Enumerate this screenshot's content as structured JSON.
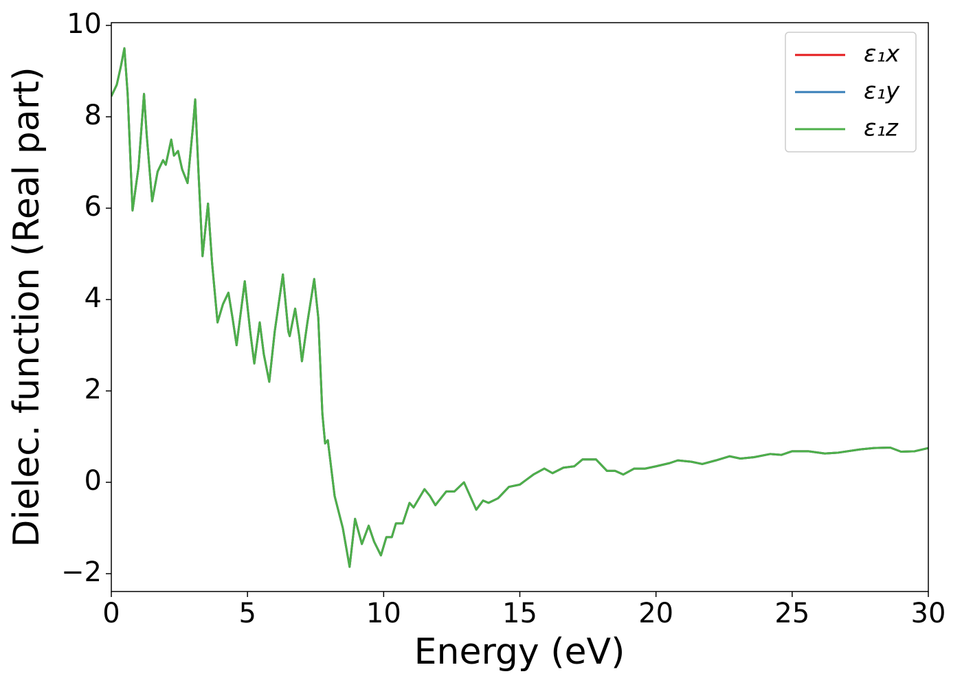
{
  "chart_data": {
    "type": "line",
    "xlabel": "Energy (eV)",
    "ylabel": "Dielec. function (Real part)",
    "x": [
      0,
      0.2,
      0.35,
      0.48,
      0.6,
      0.78,
      1.0,
      1.2,
      1.3,
      1.5,
      1.7,
      1.9,
      2.0,
      2.2,
      2.3,
      2.45,
      2.6,
      2.8,
      3.0,
      3.08,
      3.2,
      3.35,
      3.55,
      3.7,
      3.9,
      4.1,
      4.3,
      4.45,
      4.6,
      4.9,
      5.1,
      5.25,
      5.45,
      5.6,
      5.8,
      6.0,
      6.3,
      6.5,
      6.55,
      6.75,
      6.9,
      7.0,
      7.2,
      7.45,
      7.6,
      7.75,
      7.85,
      7.95,
      8.2,
      8.5,
      8.75,
      8.95,
      9.2,
      9.45,
      9.65,
      9.9,
      10.1,
      10.3,
      10.45,
      10.7,
      10.95,
      11.1,
      11.5,
      11.7,
      11.9,
      12.3,
      12.6,
      12.95,
      13.4,
      13.65,
      13.85,
      14.2,
      14.6,
      15.0,
      15.5,
      15.9,
      16.2,
      16.6,
      17.0,
      17.3,
      17.8,
      18.2,
      18.5,
      18.8,
      19.2,
      19.6,
      20.0,
      20.5,
      20.8,
      21.3,
      21.7,
      22.2,
      22.7,
      23.1,
      23.6,
      24.2,
      24.6,
      25.0,
      25.6,
      26.2,
      26.7,
      27.5,
      28.0,
      28.6,
      29.0,
      29.5,
      30.0
    ],
    "series": [
      {
        "name": "ε₁x",
        "color": "#e41a1c",
        "values": [
          8.45,
          8.7,
          9.1,
          9.5,
          8.5,
          5.95,
          6.9,
          8.5,
          7.6,
          6.15,
          6.8,
          7.05,
          6.95,
          7.5,
          7.15,
          7.25,
          6.85,
          6.55,
          7.8,
          8.38,
          6.8,
          4.95,
          6.1,
          4.8,
          3.5,
          3.9,
          4.15,
          3.6,
          3.0,
          4.4,
          3.3,
          2.6,
          3.5,
          2.8,
          2.2,
          3.3,
          4.55,
          3.3,
          3.2,
          3.8,
          3.2,
          2.65,
          3.5,
          4.45,
          3.6,
          1.5,
          0.85,
          0.92,
          -0.3,
          -1.0,
          -1.85,
          -0.8,
          -1.35,
          -0.95,
          -1.3,
          -1.6,
          -1.2,
          -1.2,
          -0.9,
          -0.9,
          -0.45,
          -0.55,
          -0.15,
          -0.3,
          -0.5,
          -0.2,
          -0.2,
          0.0,
          -0.6,
          -0.4,
          -0.45,
          -0.35,
          -0.1,
          -0.05,
          0.17,
          0.3,
          0.2,
          0.32,
          0.35,
          0.5,
          0.5,
          0.25,
          0.25,
          0.17,
          0.3,
          0.3,
          0.35,
          0.42,
          0.48,
          0.45,
          0.4,
          0.48,
          0.57,
          0.52,
          0.55,
          0.62,
          0.6,
          0.68,
          0.68,
          0.63,
          0.65,
          0.72,
          0.75,
          0.76,
          0.67,
          0.68,
          0.75
        ]
      },
      {
        "name": "ε₁y",
        "color": "#377eb8",
        "values": [
          8.45,
          8.7,
          9.1,
          9.5,
          8.5,
          5.95,
          6.9,
          8.5,
          7.6,
          6.15,
          6.8,
          7.05,
          6.95,
          7.5,
          7.15,
          7.25,
          6.85,
          6.55,
          7.8,
          8.38,
          6.8,
          4.95,
          6.1,
          4.8,
          3.5,
          3.9,
          4.15,
          3.6,
          3.0,
          4.4,
          3.3,
          2.6,
          3.5,
          2.8,
          2.2,
          3.3,
          4.55,
          3.3,
          3.2,
          3.8,
          3.2,
          2.65,
          3.5,
          4.45,
          3.6,
          1.5,
          0.85,
          0.92,
          -0.3,
          -1.0,
          -1.85,
          -0.8,
          -1.35,
          -0.95,
          -1.3,
          -1.6,
          -1.2,
          -1.2,
          -0.9,
          -0.9,
          -0.45,
          -0.55,
          -0.15,
          -0.3,
          -0.5,
          -0.2,
          -0.2,
          0.0,
          -0.6,
          -0.4,
          -0.45,
          -0.35,
          -0.1,
          -0.05,
          0.17,
          0.3,
          0.2,
          0.32,
          0.35,
          0.5,
          0.5,
          0.25,
          0.25,
          0.17,
          0.3,
          0.3,
          0.35,
          0.42,
          0.48,
          0.45,
          0.4,
          0.48,
          0.57,
          0.52,
          0.55,
          0.62,
          0.6,
          0.68,
          0.68,
          0.63,
          0.65,
          0.72,
          0.75,
          0.76,
          0.67,
          0.68,
          0.75
        ]
      },
      {
        "name": "ε₁z",
        "color": "#4daf4a",
        "values": [
          8.45,
          8.7,
          9.1,
          9.5,
          8.5,
          5.95,
          6.9,
          8.5,
          7.6,
          6.15,
          6.8,
          7.05,
          6.95,
          7.5,
          7.15,
          7.25,
          6.85,
          6.55,
          7.8,
          8.38,
          6.8,
          4.95,
          6.1,
          4.8,
          3.5,
          3.9,
          4.15,
          3.6,
          3.0,
          4.4,
          3.3,
          2.6,
          3.5,
          2.8,
          2.2,
          3.3,
          4.55,
          3.3,
          3.2,
          3.8,
          3.2,
          2.65,
          3.5,
          4.45,
          3.6,
          1.5,
          0.85,
          0.92,
          -0.3,
          -1.0,
          -1.85,
          -0.8,
          -1.35,
          -0.95,
          -1.3,
          -1.6,
          -1.2,
          -1.2,
          -0.9,
          -0.9,
          -0.45,
          -0.55,
          -0.15,
          -0.3,
          -0.5,
          -0.2,
          -0.2,
          0.0,
          -0.6,
          -0.4,
          -0.45,
          -0.35,
          -0.1,
          -0.05,
          0.17,
          0.3,
          0.2,
          0.32,
          0.35,
          0.5,
          0.5,
          0.25,
          0.25,
          0.17,
          0.3,
          0.3,
          0.35,
          0.42,
          0.48,
          0.45,
          0.4,
          0.48,
          0.57,
          0.52,
          0.55,
          0.62,
          0.6,
          0.68,
          0.68,
          0.63,
          0.65,
          0.72,
          0.75,
          0.76,
          0.67,
          0.68,
          0.75
        ]
      }
    ],
    "xlim": [
      0,
      30
    ],
    "xticks": [
      0,
      5,
      10,
      15,
      20,
      25,
      30
    ],
    "ylim": [
      -2.39,
      10.06
    ],
    "yticks": [
      {
        "value": -2,
        "label": "−2"
      },
      0,
      2,
      4,
      6,
      8,
      10
    ],
    "legend": "upper right",
    "grid": false
  }
}
